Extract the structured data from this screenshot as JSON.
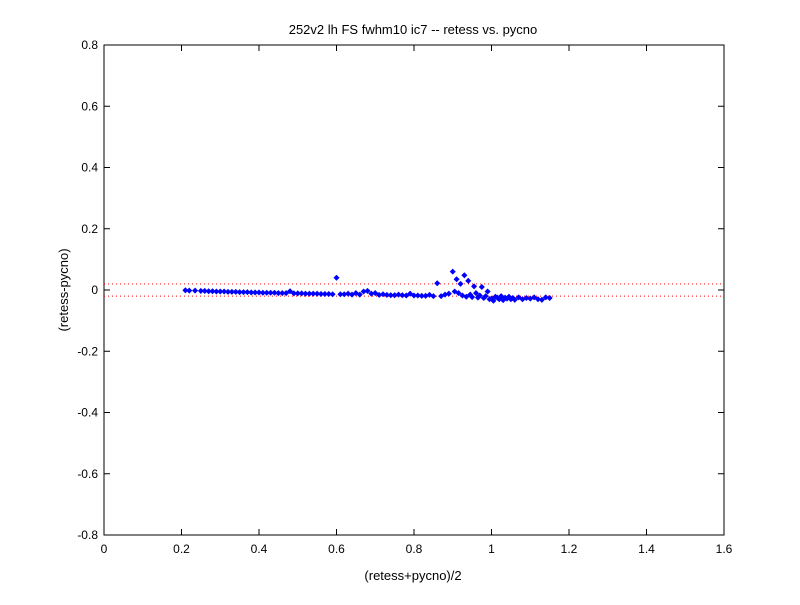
{
  "chart_data": {
    "type": "scatter",
    "title": "252v2 lh FS fwhm10 ic7 -- retess vs. pycno",
    "xlabel": "(retess+pycno)/2",
    "ylabel": "(retess-pycno)",
    "xlim": [
      0,
      1.6
    ],
    "ylim": [
      -0.8,
      0.8
    ],
    "x_ticks": [
      0,
      0.2,
      0.4,
      0.6,
      0.8,
      1,
      1.2,
      1.4,
      1.6
    ],
    "x_tick_labels": [
      "0",
      "0.2",
      "0.4",
      "0.6",
      "0.8",
      "1",
      "1.2",
      "1.4",
      "1.6"
    ],
    "y_ticks": [
      -0.8,
      -0.6,
      -0.4,
      -0.2,
      0,
      0.2,
      0.4,
      0.6,
      0.8
    ],
    "y_tick_labels": [
      "-0.8",
      "-0.6",
      "-0.4",
      "-0.2",
      "0",
      "0.2",
      "0.4",
      "0.6",
      "0.8"
    ],
    "grid": false,
    "legend": "none",
    "reference_lines": {
      "y_values": [
        0.02,
        -0.02
      ],
      "color": "#ff0000",
      "style": "dotted"
    },
    "series": [
      {
        "marker": "diamond",
        "color": "#0000ff",
        "points": [
          [
            0.21,
            -0.001
          ],
          [
            0.22,
            -0.002
          ],
          [
            0.235,
            -0.002
          ],
          [
            0.25,
            -0.003
          ],
          [
            0.26,
            -0.003
          ],
          [
            0.27,
            -0.004
          ],
          [
            0.28,
            -0.004
          ],
          [
            0.29,
            -0.005
          ],
          [
            0.3,
            -0.005
          ],
          [
            0.31,
            -0.005
          ],
          [
            0.32,
            -0.006
          ],
          [
            0.33,
            -0.006
          ],
          [
            0.34,
            -0.006
          ],
          [
            0.35,
            -0.007
          ],
          [
            0.36,
            -0.007
          ],
          [
            0.37,
            -0.007
          ],
          [
            0.38,
            -0.008
          ],
          [
            0.39,
            -0.008
          ],
          [
            0.4,
            -0.008
          ],
          [
            0.41,
            -0.009
          ],
          [
            0.42,
            -0.009
          ],
          [
            0.43,
            -0.009
          ],
          [
            0.44,
            -0.009
          ],
          [
            0.45,
            -0.01
          ],
          [
            0.46,
            -0.01
          ],
          [
            0.47,
            -0.01
          ],
          [
            0.48,
            -0.004
          ],
          [
            0.49,
            -0.011
          ],
          [
            0.5,
            -0.011
          ],
          [
            0.51,
            -0.011
          ],
          [
            0.52,
            -0.012
          ],
          [
            0.53,
            -0.012
          ],
          [
            0.54,
            -0.012
          ],
          [
            0.55,
            -0.012
          ],
          [
            0.56,
            -0.013
          ],
          [
            0.57,
            -0.013
          ],
          [
            0.58,
            -0.013
          ],
          [
            0.59,
            -0.014
          ],
          [
            0.6,
            0.04
          ],
          [
            0.61,
            -0.014
          ],
          [
            0.62,
            -0.014
          ],
          [
            0.63,
            -0.012
          ],
          [
            0.64,
            -0.015
          ],
          [
            0.65,
            -0.01
          ],
          [
            0.66,
            -0.015
          ],
          [
            0.67,
            -0.005
          ],
          [
            0.68,
            -0.003
          ],
          [
            0.69,
            -0.012
          ],
          [
            0.7,
            -0.01
          ],
          [
            0.71,
            -0.016
          ],
          [
            0.72,
            -0.014
          ],
          [
            0.73,
            -0.016
          ],
          [
            0.74,
            -0.017
          ],
          [
            0.75,
            -0.017
          ],
          [
            0.76,
            -0.015
          ],
          [
            0.77,
            -0.017
          ],
          [
            0.78,
            -0.018
          ],
          [
            0.79,
            -0.012
          ],
          [
            0.8,
            -0.018
          ],
          [
            0.81,
            -0.018
          ],
          [
            0.82,
            -0.019
          ],
          [
            0.83,
            -0.019
          ],
          [
            0.84,
            -0.016
          ],
          [
            0.85,
            -0.02
          ],
          [
            0.86,
            0.022
          ],
          [
            0.87,
            -0.02
          ],
          [
            0.88,
            -0.015
          ],
          [
            0.89,
            -0.012
          ],
          [
            0.9,
            0.06
          ],
          [
            0.905,
            -0.005
          ],
          [
            0.91,
            0.035
          ],
          [
            0.915,
            -0.01
          ],
          [
            0.92,
            0.02
          ],
          [
            0.925,
            -0.018
          ],
          [
            0.93,
            0.048
          ],
          [
            0.935,
            -0.022
          ],
          [
            0.94,
            0.03
          ],
          [
            0.945,
            -0.015
          ],
          [
            0.95,
            -0.023
          ],
          [
            0.955,
            0.012
          ],
          [
            0.96,
            -0.01
          ],
          [
            0.965,
            -0.025
          ],
          [
            0.97,
            -0.018
          ],
          [
            0.975,
            0.01
          ],
          [
            0.98,
            -0.026
          ],
          [
            0.985,
            -0.02
          ],
          [
            0.99,
            -0.005
          ],
          [
            0.995,
            -0.03
          ],
          [
            1.0,
            -0.028
          ],
          [
            1.005,
            -0.035
          ],
          [
            1.01,
            -0.022
          ],
          [
            1.015,
            -0.025
          ],
          [
            1.02,
            -0.03
          ],
          [
            1.025,
            -0.02
          ],
          [
            1.03,
            -0.033
          ],
          [
            1.035,
            -0.025
          ],
          [
            1.04,
            -0.028
          ],
          [
            1.045,
            -0.022
          ],
          [
            1.05,
            -0.03
          ],
          [
            1.055,
            -0.026
          ],
          [
            1.06,
            -0.032
          ],
          [
            1.07,
            -0.024
          ],
          [
            1.08,
            -0.03
          ],
          [
            1.09,
            -0.026
          ],
          [
            1.1,
            -0.028
          ],
          [
            1.11,
            -0.024
          ],
          [
            1.12,
            -0.03
          ],
          [
            1.13,
            -0.032
          ],
          [
            1.14,
            -0.024
          ],
          [
            1.15,
            -0.026
          ]
        ]
      }
    ]
  }
}
